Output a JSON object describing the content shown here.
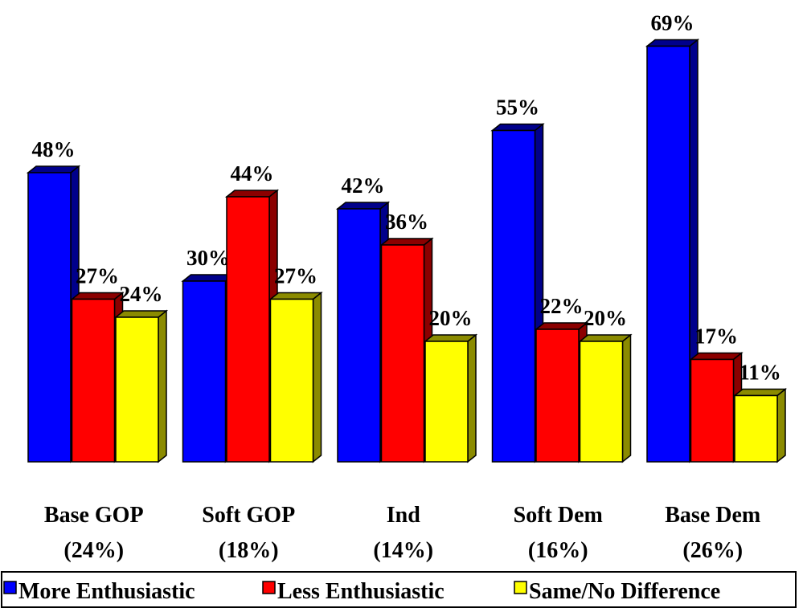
{
  "chart_data": {
    "type": "bar3d",
    "categories": [
      [
        "Base GOP",
        "(24%)"
      ],
      [
        "Soft GOP",
        "(18%)"
      ],
      [
        "Ind",
        "(14%)"
      ],
      [
        "Soft Dem",
        "(16%)"
      ],
      [
        "Base Dem",
        "(26%)"
      ]
    ],
    "series": [
      {
        "name": "More Enthusiastic",
        "color": "#0000ff",
        "side": "#00008b",
        "values": [
          48,
          30,
          42,
          55,
          69
        ],
        "value_labels": [
          "48%",
          "30%",
          "42%",
          "55%",
          "69%"
        ]
      },
      {
        "name": "Less Enthusiastic",
        "color": "#ff0000",
        "side": "#8b0000",
        "values": [
          27,
          44,
          36,
          22,
          17
        ],
        "value_labels": [
          "27%",
          "44%",
          "36%",
          "22%",
          "17%"
        ]
      },
      {
        "name": "Same/No Difference",
        "color": "#ffff00",
        "side": "#8b8b00",
        "values": [
          24,
          27,
          20,
          20,
          11
        ],
        "value_labels": [
          "24%",
          "27%",
          "20%",
          "20%",
          "11%"
        ]
      }
    ],
    "ylim": [
      0,
      75
    ],
    "legend": "bottom"
  }
}
